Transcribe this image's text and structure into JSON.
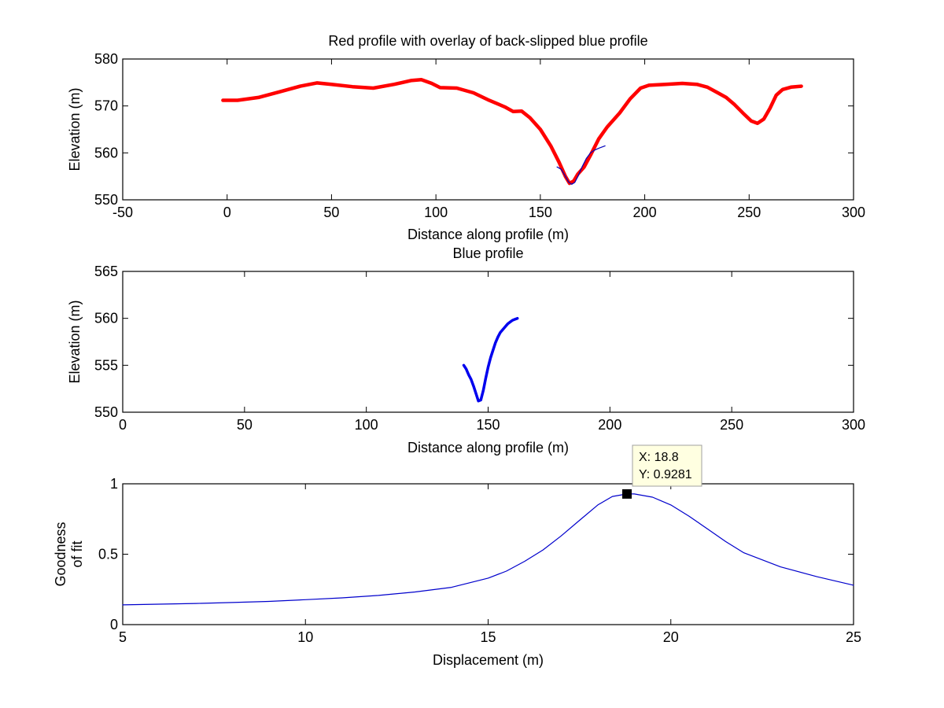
{
  "chart_data": [
    {
      "type": "line",
      "title": "Red profile with overlay of back-slipped blue profile",
      "xlabel": "Distance along profile (m)",
      "ylabel": "Elevation (m)",
      "xlim": [
        -50,
        300
      ],
      "ylim": [
        550,
        580
      ],
      "xticks": [
        -50,
        0,
        50,
        100,
        150,
        200,
        250,
        300
      ],
      "yticks": [
        550,
        560,
        570,
        580
      ],
      "series": [
        {
          "name": "Red profile",
          "color": "#ff0000",
          "x": [
            -2,
            5,
            15,
            25,
            35,
            43,
            50,
            60,
            70,
            80,
            88,
            93,
            98,
            102,
            110,
            118,
            125,
            133,
            137,
            141,
            145,
            150,
            155,
            159,
            162,
            164,
            166,
            168,
            171,
            174,
            178,
            182,
            188,
            193,
            198,
            202,
            210,
            218,
            225,
            230,
            235,
            239,
            243,
            247,
            251,
            254,
            257,
            260,
            263,
            266,
            270,
            275
          ],
          "y": [
            571.2,
            571.2,
            571.8,
            573.0,
            574.2,
            574.9,
            574.6,
            574.1,
            573.8,
            574.6,
            575.4,
            575.6,
            574.8,
            573.9,
            573.8,
            572.8,
            571.3,
            569.8,
            568.8,
            568.9,
            567.5,
            565.0,
            561.5,
            558.0,
            555.0,
            553.5,
            554.0,
            555.5,
            557.0,
            559.5,
            563.0,
            565.5,
            568.5,
            571.5,
            573.8,
            574.4,
            574.6,
            574.8,
            574.6,
            574.0,
            572.8,
            571.8,
            570.3,
            568.5,
            566.8,
            566.3,
            567.2,
            569.5,
            572.3,
            573.5,
            574.0,
            574.2
          ]
        },
        {
          "name": "Back-slipped blue profile",
          "color": "#0000bb",
          "x": [
            158,
            160,
            162,
            163.5,
            165,
            166.5,
            168,
            170,
            172,
            174,
            176,
            178,
            181
          ],
          "y": [
            557.0,
            556.5,
            555.0,
            553.8,
            553.3,
            553.7,
            555.0,
            557.0,
            558.8,
            560.0,
            560.6,
            561.0,
            561.5
          ]
        }
      ]
    },
    {
      "type": "line",
      "title": "Blue profile",
      "xlabel": "Distance along profile (m)",
      "ylabel": "Elevation (m)",
      "xlim": [
        0,
        300
      ],
      "ylim": [
        550,
        565
      ],
      "xticks": [
        0,
        50,
        100,
        150,
        200,
        250,
        300
      ],
      "yticks": [
        550,
        555,
        560,
        565
      ],
      "series": [
        {
          "name": "Blue profile",
          "color": "#0000ee",
          "x": [
            140,
            141,
            142,
            143,
            144,
            145,
            146,
            147,
            148,
            149,
            150,
            151,
            152,
            153,
            154,
            155,
            156,
            157,
            158,
            159,
            160,
            161,
            162
          ],
          "y": [
            555.0,
            554.6,
            554.0,
            553.5,
            552.8,
            552.0,
            551.2,
            551.3,
            552.3,
            553.6,
            554.8,
            555.8,
            556.6,
            557.4,
            558.0,
            558.5,
            558.8,
            559.1,
            559.4,
            559.6,
            559.8,
            559.9,
            560.0
          ]
        }
      ]
    },
    {
      "type": "line",
      "title": "",
      "xlabel": "Displacement (m)",
      "ylabel": [
        "Goodness",
        "of fit"
      ],
      "xlim": [
        5,
        25
      ],
      "ylim": [
        0,
        1
      ],
      "xticks": [
        5,
        10,
        15,
        20,
        25
      ],
      "yticks": [
        0,
        0.5,
        1
      ],
      "series": [
        {
          "name": "Goodness of fit",
          "color": "#0000cc",
          "x": [
            5,
            6,
            7,
            8,
            9,
            10,
            11,
            12,
            13,
            14,
            15,
            15.5,
            16,
            16.5,
            17,
            17.5,
            18,
            18.4,
            18.8,
            19,
            19.5,
            20,
            20.5,
            21,
            21.5,
            22,
            23,
            24,
            25
          ],
          "y": [
            0.14,
            0.145,
            0.15,
            0.157,
            0.165,
            0.177,
            0.19,
            0.207,
            0.232,
            0.265,
            0.33,
            0.38,
            0.45,
            0.53,
            0.63,
            0.74,
            0.85,
            0.91,
            0.9281,
            0.928,
            0.905,
            0.85,
            0.77,
            0.68,
            0.59,
            0.51,
            0.41,
            0.34,
            0.28
          ]
        }
      ],
      "datatip": {
        "x_label": "X: 18.8",
        "y_label": "Y: 0.9281",
        "x": 18.8,
        "y": 0.9281
      }
    }
  ]
}
